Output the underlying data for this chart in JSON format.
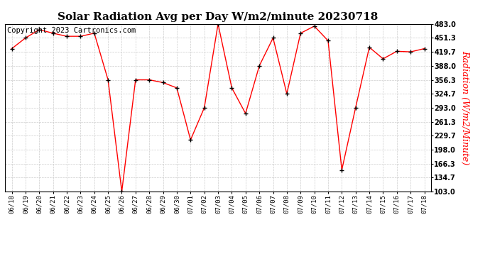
{
  "title": "Solar Radiation Avg per Day W/m2/minute 20230718",
  "copyright_text": "Copyright 2023 Cartronics.com",
  "ylabel": "Radiation (W/m2/Minute)",
  "dates": [
    "06/18",
    "06/19",
    "06/20",
    "06/21",
    "06/22",
    "06/23",
    "06/24",
    "06/25",
    "06/26",
    "06/27",
    "06/28",
    "06/29",
    "06/30",
    "07/01",
    "07/02",
    "07/03",
    "07/04",
    "07/05",
    "07/06",
    "07/07",
    "07/08",
    "07/09",
    "07/10",
    "07/11",
    "07/12",
    "07/13",
    "07/14",
    "07/15",
    "07/16",
    "07/17",
    "07/18"
  ],
  "values": [
    427.0,
    451.3,
    470.0,
    462.0,
    455.0,
    455.0,
    462.0,
    356.3,
    103.0,
    356.3,
    356.3,
    350.0,
    338.0,
    220.0,
    293.0,
    483.0,
    338.0,
    280.0,
    388.0,
    451.3,
    324.7,
    462.0,
    478.0,
    445.0,
    152.0,
    293.0,
    430.0,
    404.0,
    421.0,
    419.7,
    427.0
  ],
  "line_color": "red",
  "marker_color": "black",
  "grid_color": "#cccccc",
  "background_color": "white",
  "yticks": [
    103.0,
    134.7,
    166.3,
    198.0,
    229.7,
    261.3,
    293.0,
    324.7,
    356.3,
    388.0,
    419.7,
    451.3,
    483.0
  ],
  "ylim": [
    103.0,
    483.0
  ],
  "title_fontsize": 11,
  "ylabel_fontsize": 9,
  "copyright_fontsize": 7.5
}
